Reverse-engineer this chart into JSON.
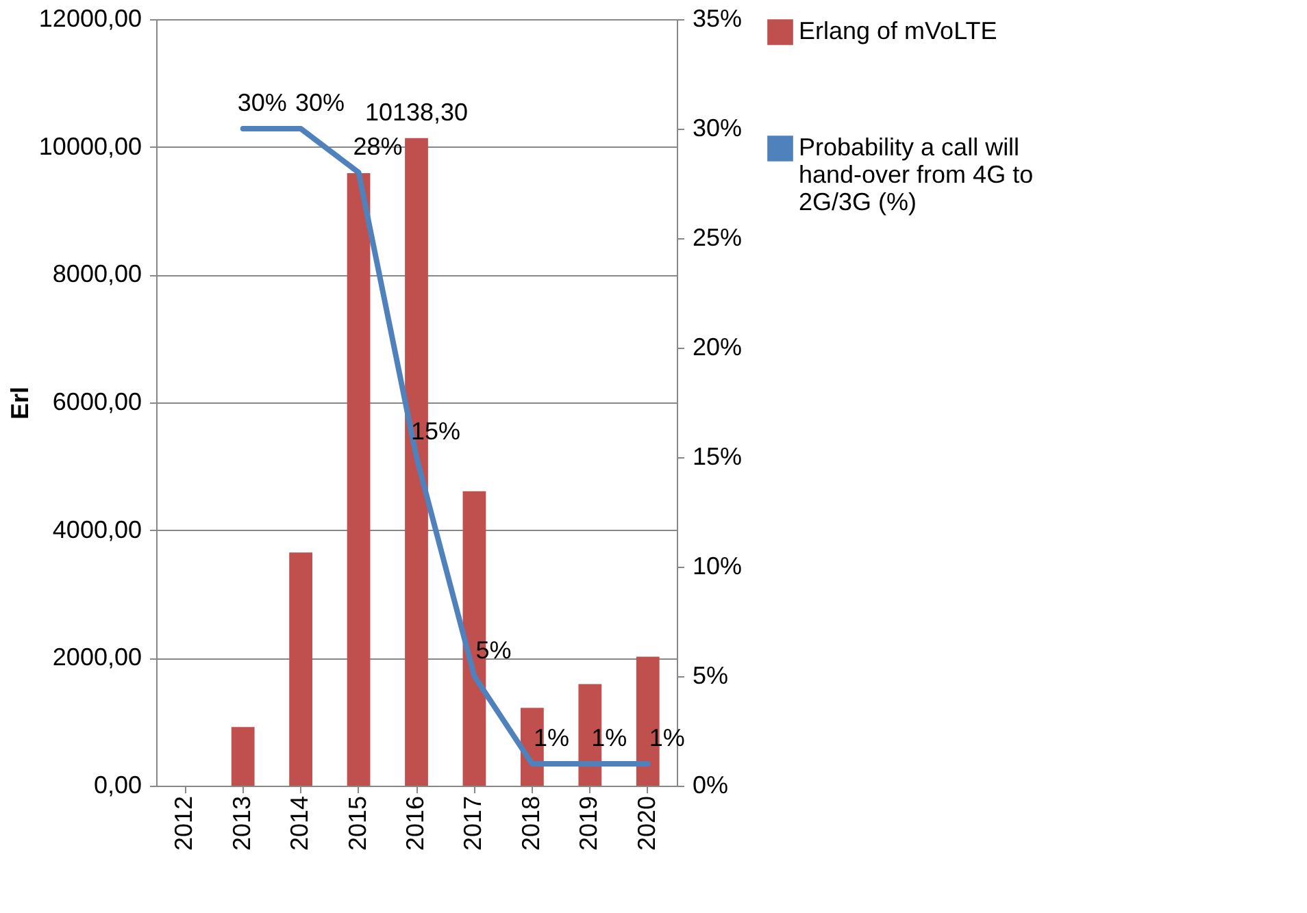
{
  "chart_data": {
    "type": "bar",
    "categories": [
      "2012",
      "2013",
      "2014",
      "2015",
      "2016",
      "2017",
      "2018",
      "2019",
      "2020"
    ],
    "series": [
      {
        "name": "Erlang of mVoLTE",
        "color": "#c0504d",
        "values": [
          null,
          920,
          3650,
          9590,
          10138.3,
          4610,
          1220,
          1590,
          2020
        ],
        "value_labels": [
          null,
          null,
          null,
          null,
          "10138,30",
          null,
          null,
          null,
          null
        ]
      },
      {
        "name": "Probability a call will hand-over from 4G to 2G/3G (%)",
        "type": "line",
        "axis": "y2",
        "color": "#4f81bd",
        "values": [
          null,
          30,
          30,
          28,
          15,
          5,
          1,
          1,
          1
        ],
        "value_labels": [
          null,
          "30%",
          "30%",
          "28%",
          "15%",
          "5%",
          "1%",
          "1%",
          "1%"
        ]
      }
    ],
    "ylabel": "Erl",
    "ylim": [
      0,
      12000
    ],
    "yticks": [
      {
        "value": 0,
        "label": "0,00"
      },
      {
        "value": 2000,
        "label": "2000,00"
      },
      {
        "value": 4000,
        "label": "4000,00"
      },
      {
        "value": 6000,
        "label": "6000,00"
      },
      {
        "value": 8000,
        "label": "8000,00"
      },
      {
        "value": 10000,
        "label": "10000,00"
      },
      {
        "value": 12000,
        "label": "12000,00"
      }
    ],
    "y2lim": [
      0,
      35
    ],
    "y2ticks": [
      {
        "value": 0,
        "label": "0%"
      },
      {
        "value": 5,
        "label": "5%"
      },
      {
        "value": 10,
        "label": "10%"
      },
      {
        "value": 15,
        "label": "15%"
      },
      {
        "value": 20,
        "label": "20%"
      },
      {
        "value": 25,
        "label": "25%"
      },
      {
        "value": 30,
        "label": "30%"
      },
      {
        "value": 35,
        "label": "35%"
      }
    ],
    "grid": "y",
    "legend": "right"
  }
}
